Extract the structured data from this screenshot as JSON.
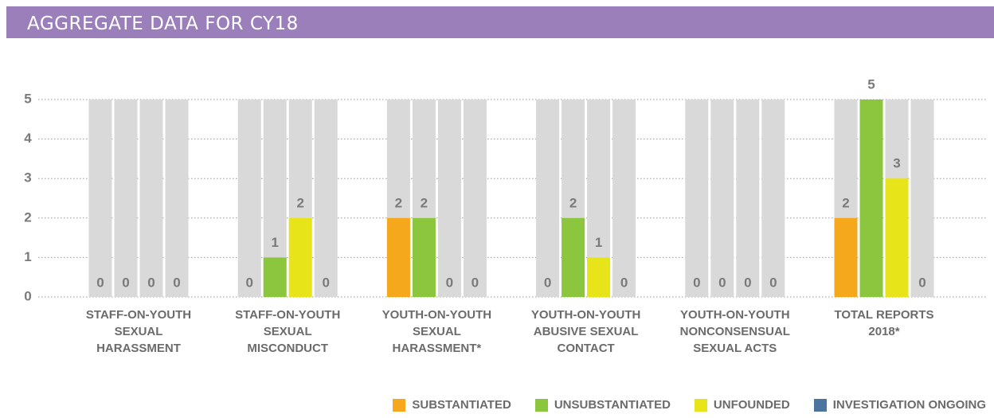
{
  "chart_data": {
    "type": "bar",
    "title": "AGGREGATE DATA FOR CY18",
    "categories": [
      "STAFF-ON-YOUTH SEXUAL HARASSMENT",
      "STAFF-ON-YOUTH SEXUAL MISCONDUCT",
      "YOUTH-ON-YOUTH SEXUAL HARASSMENT*",
      "YOUTH-ON-YOUTH ABUSIVE SEXUAL CONTACT",
      "YOUTH-ON-YOUTH NONCONSENSUAL SEXUAL ACTS",
      "TOTAL REPORTS 2018*"
    ],
    "series": [
      {
        "name": "SUBSTANTIATED",
        "color": "#f6a81c",
        "values": [
          0,
          0,
          2,
          0,
          0,
          2
        ]
      },
      {
        "name": "UNSUBSTANTIATED",
        "color": "#8cc63f",
        "values": [
          0,
          1,
          2,
          2,
          0,
          5
        ]
      },
      {
        "name": "UNFOUNDED",
        "color": "#e8e41a",
        "values": [
          0,
          2,
          0,
          1,
          0,
          3
        ]
      },
      {
        "name": "INVESTIGATION ONGOING",
        "color": "#4a75a0",
        "values": [
          0,
          0,
          0,
          0,
          0,
          0
        ]
      }
    ],
    "ylim": [
      0,
      5
    ],
    "yticks": [
      0,
      1,
      2,
      3,
      4,
      5
    ],
    "grid": true,
    "legend": "bottom-right"
  }
}
